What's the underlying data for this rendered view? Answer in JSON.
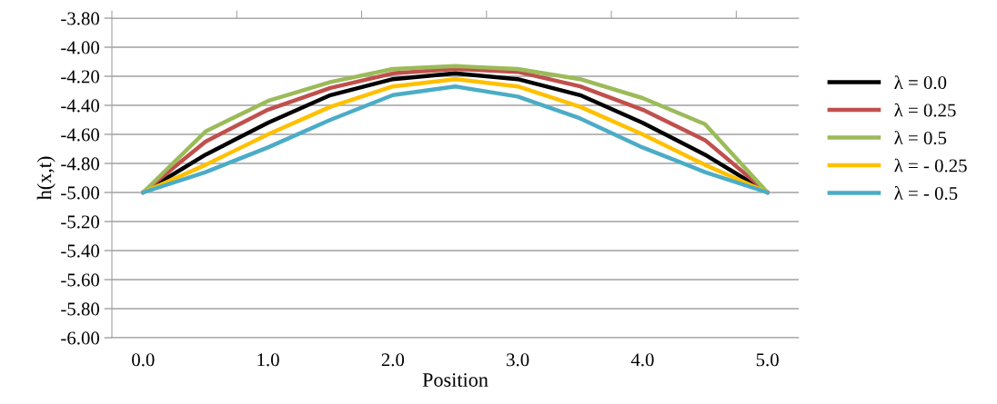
{
  "chart_data": {
    "type": "line",
    "xlabel": "Position",
    "ylabel": "h(x,t)",
    "categories": [
      "0.0",
      null,
      "1.0",
      null,
      "2.0",
      null,
      "3.0",
      null,
      "4.0",
      null,
      "5.0"
    ],
    "series": [
      {
        "name": "λ = 0.0",
        "color": "#000000",
        "values": [
          -5.0,
          -4.74,
          -4.52,
          -4.33,
          -4.22,
          -4.18,
          -4.22,
          -4.33,
          -4.52,
          -4.74,
          -5.0
        ]
      },
      {
        "name": "λ = 0.25",
        "color": "#c0504d",
        "values": [
          -5.0,
          -4.65,
          -4.43,
          -4.28,
          -4.18,
          -4.15,
          -4.17,
          -4.27,
          -4.43,
          -4.64,
          -5.0
        ]
      },
      {
        "name": "λ = 0.5",
        "color": "#9bbb59",
        "values": [
          -5.0,
          -4.58,
          -4.37,
          -4.24,
          -4.15,
          -4.13,
          -4.15,
          -4.22,
          -4.35,
          -4.53,
          -5.0
        ]
      },
      {
        "name": "λ = - 0.25",
        "color": "#ffc000",
        "values": [
          -5.0,
          -4.81,
          -4.6,
          -4.41,
          -4.27,
          -4.22,
          -4.27,
          -4.41,
          -4.6,
          -4.81,
          -5.0
        ]
      },
      {
        "name": "λ = - 0.5",
        "color": "#4bacc6",
        "values": [
          -5.0,
          -4.86,
          -4.69,
          -4.5,
          -4.33,
          -4.27,
          -4.34,
          -4.49,
          -4.69,
          -4.86,
          -5.0
        ]
      }
    ],
    "ylim": [
      -6.0,
      -3.8
    ],
    "yticks": [
      {
        "value": -6.0,
        "label": "-6.00"
      },
      {
        "value": -5.8,
        "label": "-5.80"
      },
      {
        "value": -5.6,
        "label": "-5.60"
      },
      {
        "value": -5.4,
        "label": "-5.40"
      },
      {
        "value": -5.2,
        "label": "-5.20"
      },
      {
        "value": -5.0,
        "label": "-5.00"
      },
      {
        "value": -4.8,
        "label": "-4.80"
      },
      {
        "value": -4.6,
        "label": "-4.60"
      },
      {
        "value": -4.4,
        "label": "-4.40"
      },
      {
        "value": -4.2,
        "label": "-4.20"
      },
      {
        "value": -4.0,
        "label": "-4.00"
      },
      {
        "value": -3.8,
        "label": "-3.80"
      }
    ],
    "grid": "y",
    "legend": "right",
    "marker": "none",
    "line_style": "solid"
  }
}
